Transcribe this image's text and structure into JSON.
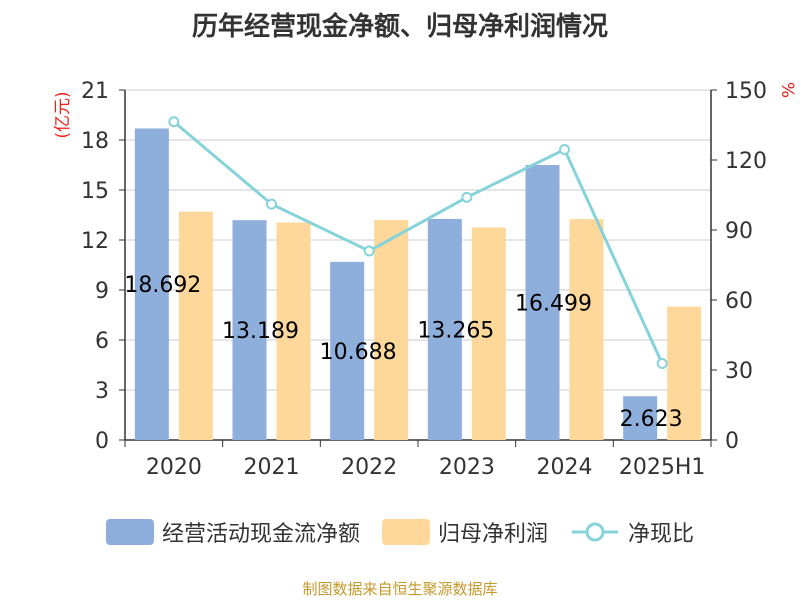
{
  "chart_data": {
    "type": "bar",
    "title": "历年经营现金净额、归母净利润情况",
    "categories": [
      "2020",
      "2021",
      "2022",
      "2023",
      "2024",
      "2025H1"
    ],
    "series": [
      {
        "name": "经营活动现金流净额",
        "type": "bar",
        "axis": "left",
        "color": "#8eaedc",
        "values": [
          18.692,
          13.189,
          10.688,
          13.265,
          16.499,
          2.623
        ]
      },
      {
        "name": "归母净利润",
        "type": "bar",
        "axis": "left",
        "color": "#fdd89a",
        "values": [
          13.7,
          13.05,
          13.2,
          12.75,
          13.25,
          8.0
        ]
      },
      {
        "name": "净现比",
        "type": "line",
        "axis": "right",
        "color": "#86d3da",
        "values": [
          136.4,
          101.1,
          81.0,
          104.0,
          124.5,
          32.8
        ]
      }
    ],
    "data_labels": [
      "18.692",
      "13.189",
      "10.688",
      "13.265",
      "16.499",
      "2.623"
    ],
    "yleft": {
      "label": "(亿元)",
      "min": 0,
      "max": 21,
      "ticks": [
        0,
        3,
        6,
        9,
        12,
        15,
        18,
        21
      ]
    },
    "yright": {
      "label": "%",
      "min": 0,
      "max": 150,
      "ticks": [
        0,
        30,
        60,
        90,
        120,
        150
      ]
    },
    "grid": true,
    "legend_position": "bottom"
  },
  "source_text": "制图数据来自恒生聚源数据库"
}
